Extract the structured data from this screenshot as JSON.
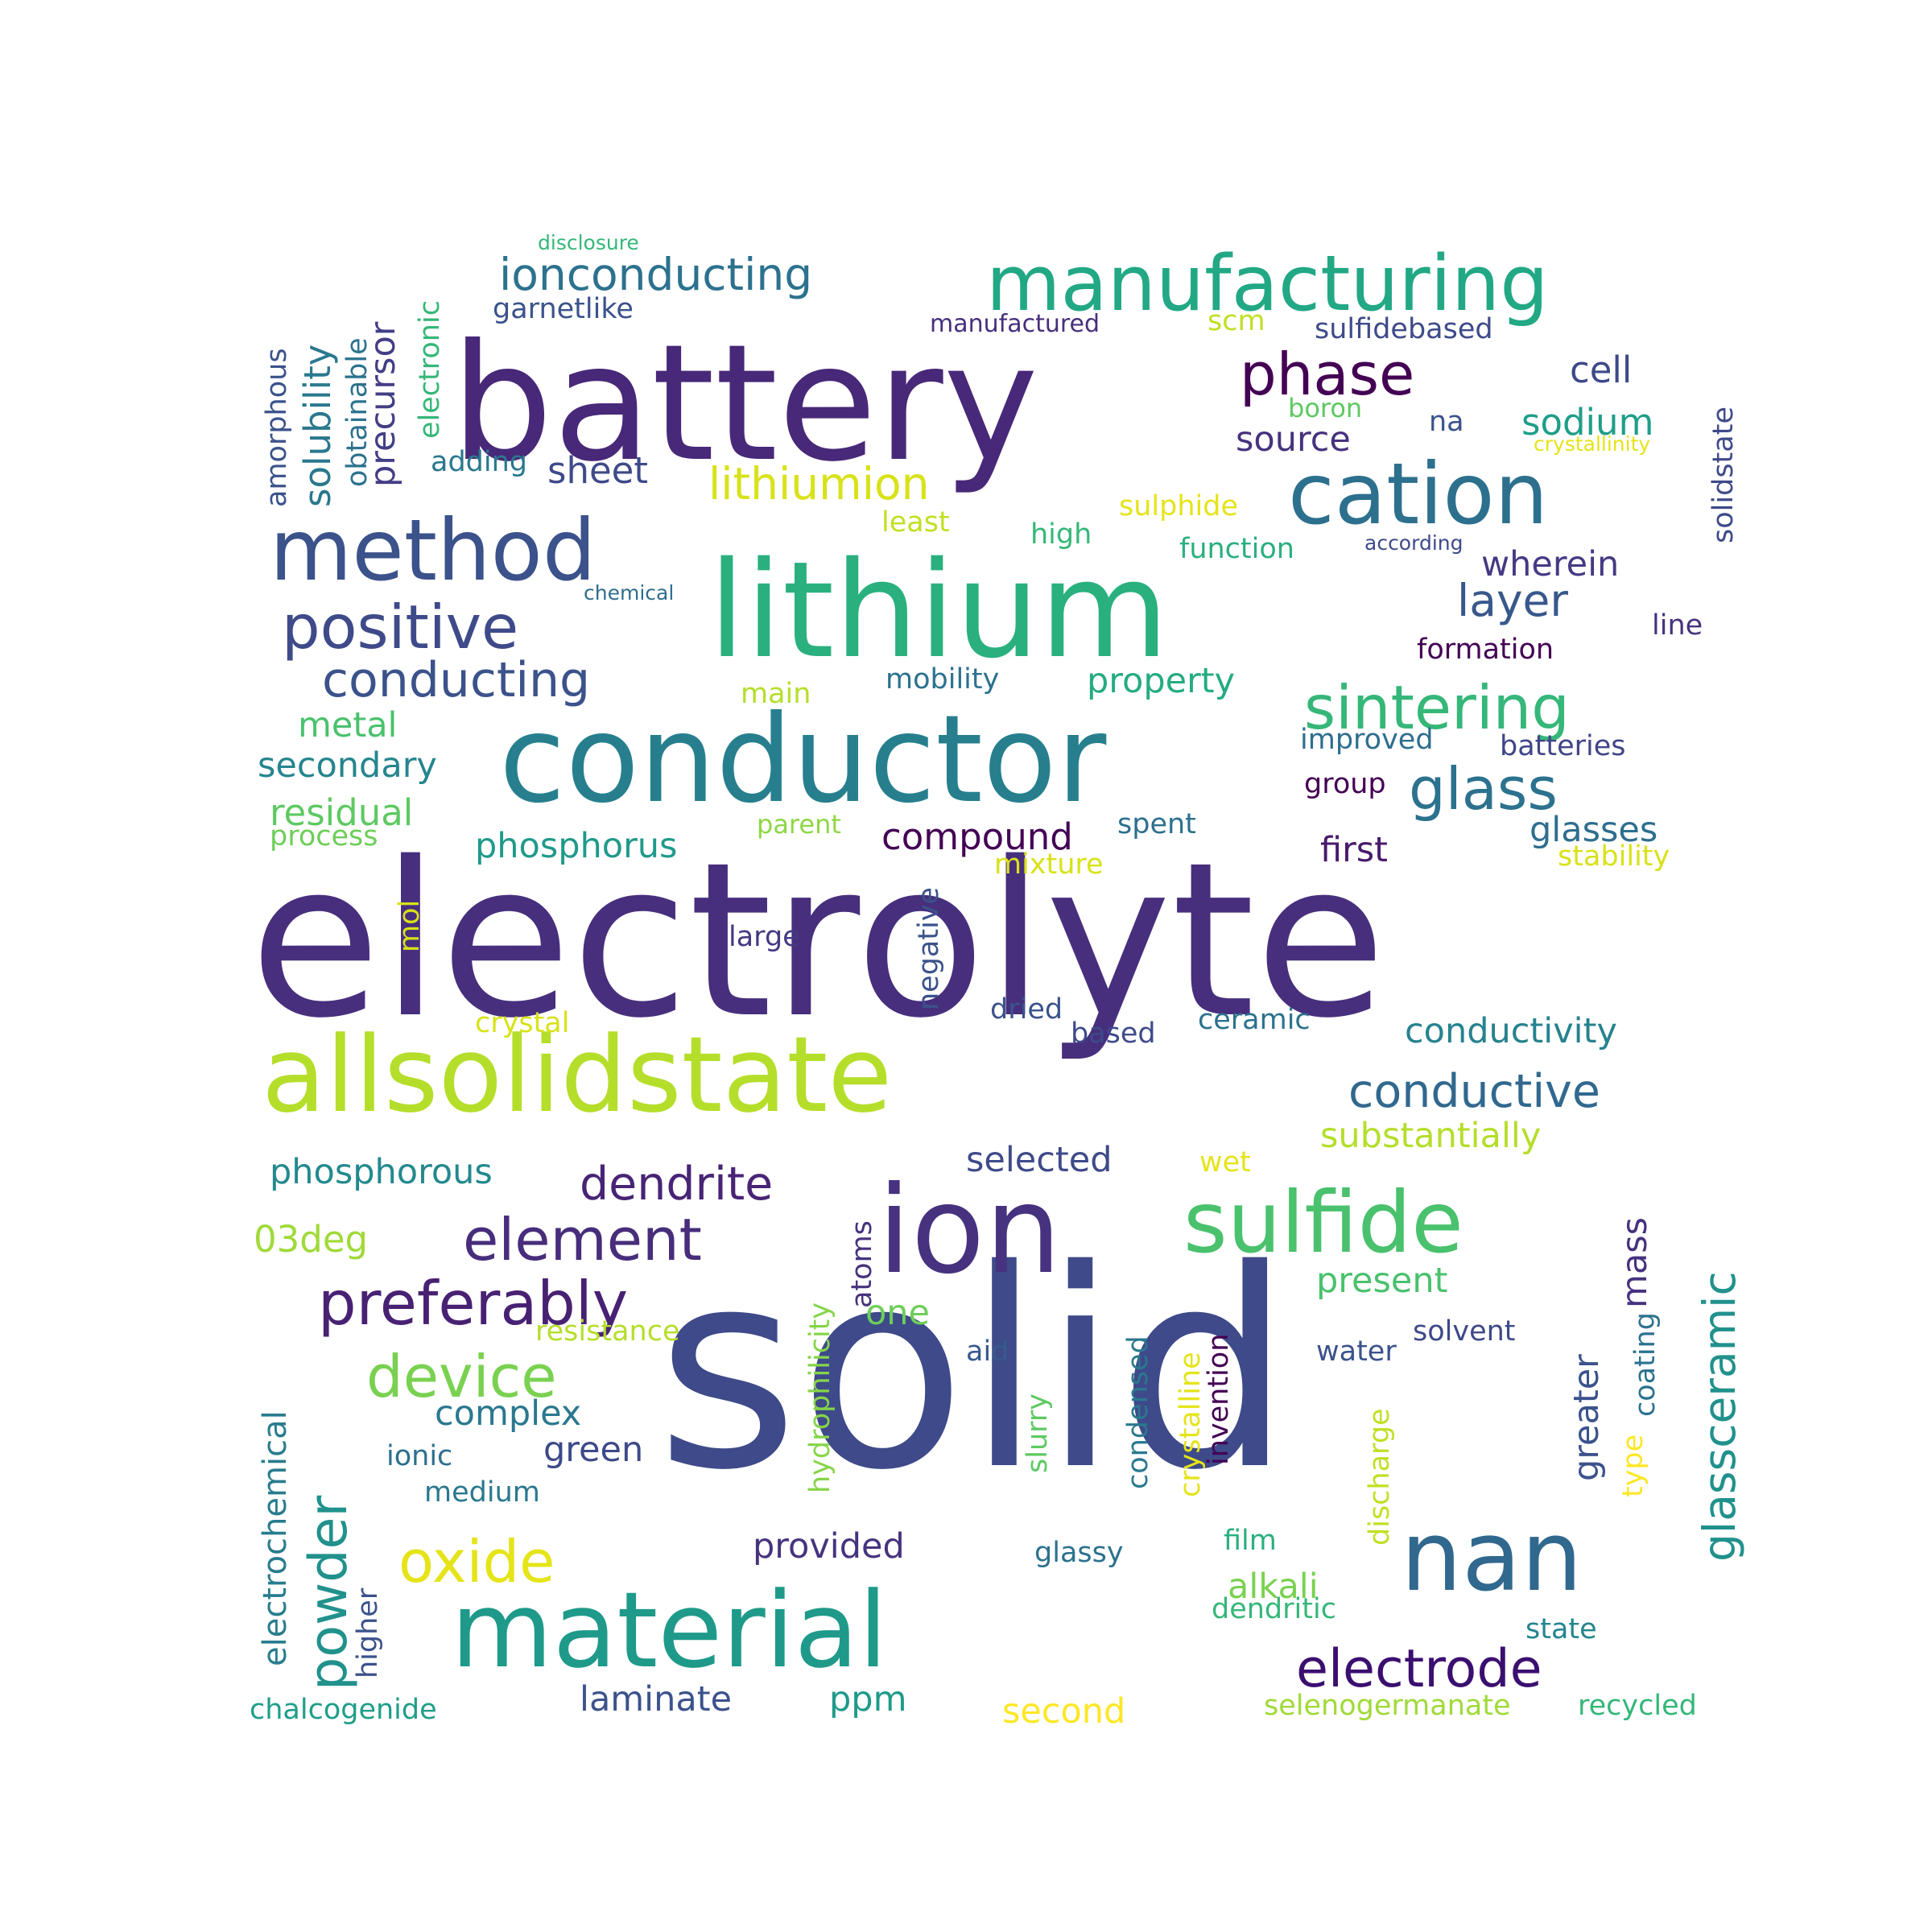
{
  "word_cloud": {
    "words": [
      {
        "text": "solid",
        "color": "#3e4a89"
      },
      {
        "text": "electrolyte",
        "color": "#472f7d"
      },
      {
        "text": "battery",
        "color": "#482878"
      },
      {
        "text": "lithium",
        "color": "#2ab07f"
      },
      {
        "text": "conductor",
        "color": "#277f8e"
      },
      {
        "text": "allsolidstate",
        "color": "#b5de2b"
      },
      {
        "text": "material",
        "color": "#1f9a8a"
      },
      {
        "text": "ion",
        "color": "#46327e"
      },
      {
        "text": "manufacturing",
        "color": "#22a884"
      },
      {
        "text": "cation",
        "color": "#2d708e"
      },
      {
        "text": "method",
        "color": "#3b528b"
      },
      {
        "text": "nan",
        "color": "#31688e"
      },
      {
        "text": "sulfide",
        "color": "#4ac16d"
      },
      {
        "text": "positive",
        "color": "#3e4a89"
      },
      {
        "text": "sintering",
        "color": "#35b779"
      },
      {
        "text": "conducting",
        "color": "#3b528b"
      },
      {
        "text": "ionconducting",
        "color": "#2c728e"
      },
      {
        "text": "phase",
        "color": "#440154"
      },
      {
        "text": "lithiumion",
        "color": "#d8e219"
      },
      {
        "text": "glass",
        "color": "#2c728e"
      },
      {
        "text": "preferably",
        "color": "#482173"
      },
      {
        "text": "element",
        "color": "#472d7b"
      },
      {
        "text": "device",
        "color": "#7ad151"
      },
      {
        "text": "oxide",
        "color": "#e5e419"
      },
      {
        "text": "electrode",
        "color": "#3b0f70"
      },
      {
        "text": "powder",
        "color": "#21918c"
      },
      {
        "text": "conductive",
        "color": "#31688e"
      },
      {
        "text": "dendrite",
        "color": "#482475"
      },
      {
        "text": "glassceramic",
        "color": "#21918c"
      },
      {
        "text": "layer",
        "color": "#38588c"
      },
      {
        "text": "sodium",
        "color": "#1f9e89"
      },
      {
        "text": "cell",
        "color": "#3e4989"
      },
      {
        "text": "source",
        "color": "#46327e"
      },
      {
        "text": "wherein",
        "color": "#443a83"
      },
      {
        "text": "sheet",
        "color": "#3e4a89"
      },
      {
        "text": "precursor",
        "color": "#433e85"
      },
      {
        "text": "solubility",
        "color": "#2a788e"
      },
      {
        "text": "property",
        "color": "#25ab82"
      },
      {
        "text": "metal",
        "color": "#4ac16d"
      },
      {
        "text": "secondary",
        "color": "#25858e"
      },
      {
        "text": "residual",
        "color": "#5ec962"
      },
      {
        "text": "phosphorus",
        "color": "#1f9a8a"
      },
      {
        "text": "compound",
        "color": "#440154"
      },
      {
        "text": "first",
        "color": "#481a6c"
      },
      {
        "text": "glasses",
        "color": "#2e6e8e"
      },
      {
        "text": "conductivity",
        "color": "#26828e"
      },
      {
        "text": "substantially",
        "color": "#b5de2b"
      },
      {
        "text": "selected",
        "color": "#3e4a89"
      },
      {
        "text": "phosphorous",
        "color": "#23898e"
      },
      {
        "text": "03deg",
        "color": "#a0da39"
      },
      {
        "text": "present",
        "color": "#4ac16d"
      },
      {
        "text": "mass",
        "color": "#46327e"
      },
      {
        "text": "greater",
        "color": "#3b528b"
      },
      {
        "text": "one",
        "color": "#6ece58"
      },
      {
        "text": "complex",
        "color": "#2a788e"
      },
      {
        "text": "green",
        "color": "#3e4989"
      },
      {
        "text": "provided",
        "color": "#46337e"
      },
      {
        "text": "alkali",
        "color": "#7ad151"
      },
      {
        "text": "laminate",
        "color": "#3b528b"
      },
      {
        "text": "ppm",
        "color": "#1f9a8a"
      },
      {
        "text": "second",
        "color": "#fde725"
      },
      {
        "text": "electrochemical",
        "color": "#287c8e"
      },
      {
        "text": "chalcogenide",
        "color": "#1f9e89"
      },
      {
        "text": "selenogermanate",
        "color": "#a0da39"
      },
      {
        "text": "recycled",
        "color": "#35b779"
      },
      {
        "text": "state",
        "color": "#25858e"
      },
      {
        "text": "dendritic",
        "color": "#35b779"
      },
      {
        "text": "film",
        "color": "#2ab07f"
      },
      {
        "text": "glassy",
        "color": "#2c728e"
      },
      {
        "text": "solvent",
        "color": "#3e4989"
      },
      {
        "text": "water",
        "color": "#3b528b"
      },
      {
        "text": "aid",
        "color": "#38598c"
      },
      {
        "text": "resistance",
        "color": "#b5de2b"
      },
      {
        "text": "ionic",
        "color": "#2e6f8e"
      },
      {
        "text": "medium",
        "color": "#2a788e"
      },
      {
        "text": "garnetlike",
        "color": "#3b528b"
      },
      {
        "text": "manufactured",
        "color": "#472f7d"
      },
      {
        "text": "scm",
        "color": "#c2df23"
      },
      {
        "text": "sulfidebased",
        "color": "#3e4a89"
      },
      {
        "text": "boron",
        "color": "#5ec962"
      },
      {
        "text": "na",
        "color": "#3b528b"
      },
      {
        "text": "crystallinity",
        "color": "#e5e419"
      },
      {
        "text": "adding",
        "color": "#2a788e"
      },
      {
        "text": "least",
        "color": "#c2df23"
      },
      {
        "text": "high",
        "color": "#35b779"
      },
      {
        "text": "sulphide",
        "color": "#e5e419"
      },
      {
        "text": "function",
        "color": "#2ab07f"
      },
      {
        "text": "according",
        "color": "#3e4a89"
      },
      {
        "text": "chemical",
        "color": "#2e6e8e"
      },
      {
        "text": "formation",
        "color": "#440154"
      },
      {
        "text": "line",
        "color": "#46327e"
      },
      {
        "text": "main",
        "color": "#b5de2b"
      },
      {
        "text": "mobility",
        "color": "#2c728e"
      },
      {
        "text": "improved",
        "color": "#2e6e8e"
      },
      {
        "text": "batteries",
        "color": "#414487"
      },
      {
        "text": "group",
        "color": "#440154"
      },
      {
        "text": "parent",
        "color": "#8fd744"
      },
      {
        "text": "spent",
        "color": "#2d708e"
      },
      {
        "text": "process",
        "color": "#6ece58"
      },
      {
        "text": "mixture",
        "color": "#d8e219"
      },
      {
        "text": "stability",
        "color": "#d8e219"
      },
      {
        "text": "large",
        "color": "#443a83"
      },
      {
        "text": "negative",
        "color": "#3b528b"
      },
      {
        "text": "mol",
        "color": "#d8e219"
      },
      {
        "text": "dried",
        "color": "#3b528b"
      },
      {
        "text": "crystal",
        "color": "#d8e219"
      },
      {
        "text": "based",
        "color": "#3e4a89"
      },
      {
        "text": "ceramic",
        "color": "#2c728e"
      },
      {
        "text": "wet",
        "color": "#e5e419"
      },
      {
        "text": "atoms",
        "color": "#46327e"
      },
      {
        "text": "hydrophilicity",
        "color": "#86d549"
      },
      {
        "text": "condensed",
        "color": "#2a788e"
      },
      {
        "text": "crystalline",
        "color": "#e5e419"
      },
      {
        "text": "invention",
        "color": "#440154"
      },
      {
        "text": "discharge",
        "color": "#c2df23"
      },
      {
        "text": "coating",
        "color": "#2c728e"
      },
      {
        "text": "type",
        "color": "#fde725"
      },
      {
        "text": "slurry",
        "color": "#5ec962"
      },
      {
        "text": "higher",
        "color": "#3b528b"
      },
      {
        "text": "amorphous",
        "color": "#3b528b"
      },
      {
        "text": "obtainable",
        "color": "#2c728e"
      },
      {
        "text": "electronic",
        "color": "#35b779"
      },
      {
        "text": "disclosure",
        "color": "#35b779"
      },
      {
        "text": "solidstate",
        "color": "#3e4a89"
      }
    ]
  }
}
